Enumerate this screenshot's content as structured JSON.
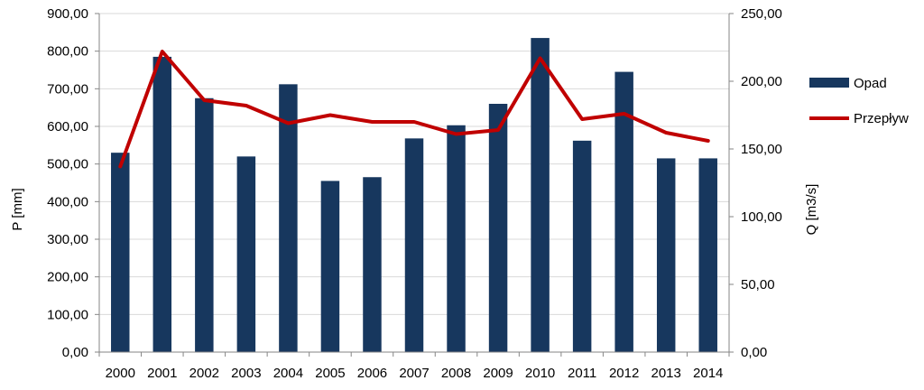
{
  "chart_data": {
    "type": "bar",
    "categories": [
      "2000",
      "2001",
      "2002",
      "2003",
      "2004",
      "2005",
      "2006",
      "2007",
      "2008",
      "2009",
      "2010",
      "2011",
      "2012",
      "2013",
      "2014"
    ],
    "series": [
      {
        "name": "Opad",
        "type": "bar",
        "axis": "left",
        "color": "#17375e",
        "values": [
          530,
          785,
          675,
          520,
          712,
          455,
          465,
          568,
          603,
          660,
          835,
          562,
          745,
          515,
          515
        ]
      },
      {
        "name": "Przepływ",
        "type": "line",
        "axis": "right",
        "color": "#c00000",
        "values": [
          137,
          222,
          186,
          182,
          169,
          175,
          170,
          170,
          161,
          164,
          217,
          172,
          176,
          162,
          156
        ]
      }
    ],
    "ylabel_left": "P [mm]",
    "ylabel_right": "Q [m3/s]",
    "ylim_left": [
      0,
      900
    ],
    "ylim_right": [
      0,
      250
    ],
    "yticks_left": [
      "0,00",
      "100,00",
      "200,00",
      "300,00",
      "400,00",
      "500,00",
      "600,00",
      "700,00",
      "800,00",
      "900,00"
    ],
    "yticks_right": [
      "0,00",
      "50,00",
      "100,00",
      "150,00",
      "200,00",
      "250,00"
    ],
    "grid": true,
    "legend_position": "right"
  }
}
